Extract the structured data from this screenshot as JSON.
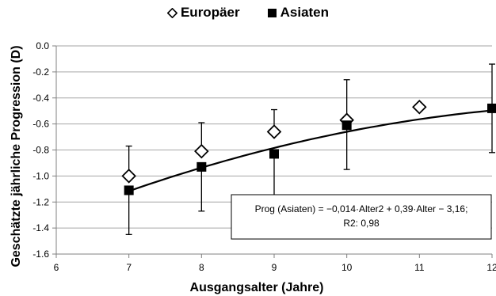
{
  "chart_data": {
    "type": "scatter",
    "title": "",
    "xlabel": "Ausgangsalter (Jahre)",
    "ylabel": "Geschätzte jährliche Progression (D)",
    "xlim": [
      6,
      12
    ],
    "ylim": [
      -1.6,
      0.0
    ],
    "x_ticks": [
      "6",
      "7",
      "8",
      "9",
      "10",
      "11",
      "12"
    ],
    "y_ticks": [
      "0.0",
      "-0.2",
      "-0.4",
      "-0.6",
      "-0.8",
      "-1.0",
      "-1.2",
      "-1.4",
      "-1.6"
    ],
    "grid": "horizontal",
    "legend": "top-center",
    "series": [
      {
        "name": "Europäer",
        "marker": "open-diamond",
        "x": [
          7,
          8,
          9,
          10,
          11
        ],
        "y": [
          -1.0,
          -0.81,
          -0.66,
          -0.57,
          -0.47
        ],
        "err_low": [
          -1.0,
          -0.81,
          -0.66,
          -0.57,
          null
        ],
        "err_high": [
          -0.77,
          -0.59,
          -0.49,
          -0.26,
          null
        ]
      },
      {
        "name": "Asiaten",
        "marker": "filled-square",
        "x": [
          7,
          8,
          9,
          10,
          12
        ],
        "y": [
          -1.11,
          -0.93,
          -0.83,
          -0.61,
          -0.48
        ],
        "err_low": [
          -1.45,
          -1.27,
          -1.17,
          -0.95,
          -0.82
        ],
        "err_high": [
          -1.11,
          -0.93,
          -0.83,
          -0.61,
          -0.14
        ]
      }
    ],
    "trendline": {
      "series": "Asiaten",
      "a": -0.014,
      "b": 0.39,
      "c": -3.16,
      "x_range": [
        7,
        12
      ]
    },
    "annotation": {
      "line1": "Prog (Asiaten) = −0,014·Alter2 + 0,39·Alter − 3,16;",
      "line2": "R2: 0,98"
    }
  },
  "colors": {
    "axis": "#808080",
    "grid": "#a6a6a6",
    "marker": "#000000"
  }
}
